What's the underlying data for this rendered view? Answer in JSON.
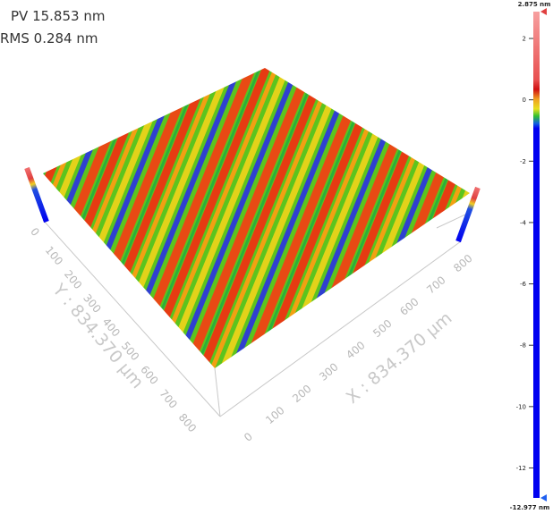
{
  "stats": {
    "pv": "PV 15.853 nm",
    "rms": "RMS 0.284 nm"
  },
  "surface": {
    "y_axis": {
      "title": "Y : 834.370 µm",
      "ticks": [
        0,
        100,
        200,
        300,
        400,
        500,
        600,
        700,
        800
      ]
    },
    "x_axis": {
      "title": "X : 834.370 µm",
      "ticks": [
        0,
        100,
        200,
        300,
        400,
        500,
        600,
        700,
        800
      ]
    }
  },
  "colorbar": {
    "max": {
      "value": 2.875,
      "label": "2.875 nm"
    },
    "min": {
      "value": -12.977,
      "label": "-12.977 nm"
    },
    "ticks": [
      2,
      0,
      -2,
      -4,
      -6,
      -8,
      -10,
      -12
    ]
  }
}
